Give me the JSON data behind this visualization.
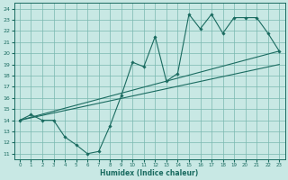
{
  "xlabel": "Humidex (Indice chaleur)",
  "ylabel": "",
  "xlim": [
    -0.5,
    23.5
  ],
  "ylim": [
    10.5,
    24.5
  ],
  "xticks": [
    0,
    1,
    2,
    3,
    4,
    5,
    6,
    7,
    8,
    9,
    10,
    11,
    12,
    13,
    14,
    15,
    16,
    17,
    18,
    19,
    20,
    21,
    22,
    23
  ],
  "yticks": [
    11,
    12,
    13,
    14,
    15,
    16,
    17,
    18,
    19,
    20,
    21,
    22,
    23,
    24
  ],
  "bg_color": "#c8e8e4",
  "grid_color": "#7ab8b0",
  "line_color": "#1a6b60",
  "curve1_x": [
    0,
    1,
    2,
    3,
    4,
    5,
    6,
    7,
    8,
    9,
    10,
    11,
    12,
    13,
    14,
    15,
    16,
    17,
    18,
    19,
    20,
    21,
    22,
    23
  ],
  "curve1_y": [
    14.0,
    14.5,
    14.0,
    14.0,
    12.5,
    11.8,
    11.0,
    11.2,
    13.5,
    16.2,
    19.2,
    18.8,
    21.5,
    17.5,
    18.2,
    23.5,
    22.2,
    23.5,
    21.8,
    23.2,
    23.2,
    23.2,
    21.8,
    20.2
  ],
  "line1_x": [
    0,
    23
  ],
  "line1_y": [
    14.0,
    20.2
  ],
  "line2_x": [
    0,
    23
  ],
  "line2_y": [
    14.0,
    19.0
  ]
}
